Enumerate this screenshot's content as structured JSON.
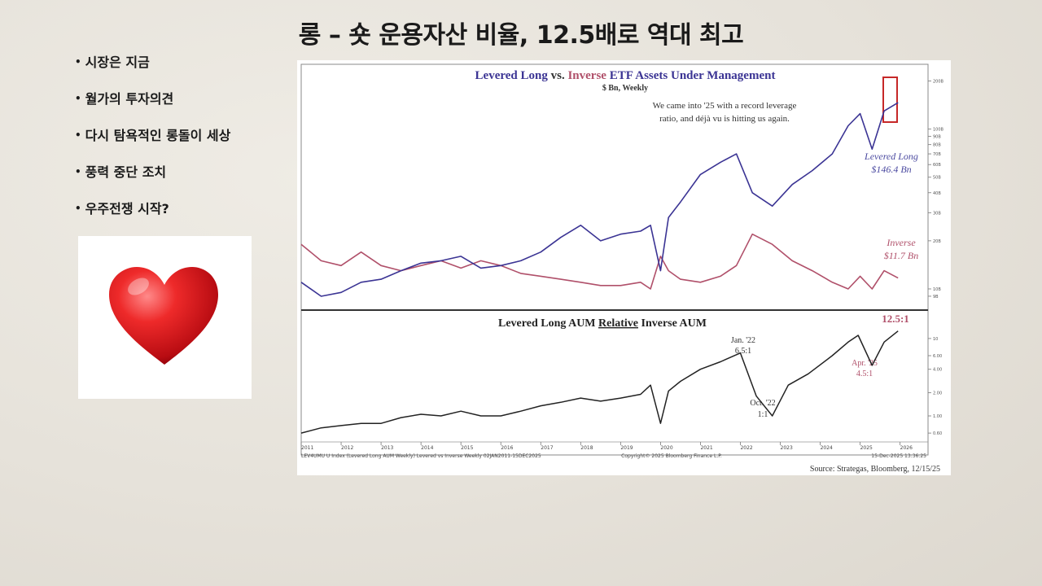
{
  "slide": {
    "title": "롱 – 숏 운용자산 비율, 12.5배로 역대 최고",
    "bullets": [
      "시장은 지금",
      "월가의 투자의견",
      "다시 탐욕적인 롱돌이 세상",
      "풍력 중단 조치",
      "우주전쟁 시작?"
    ],
    "image_icon": "red-heart"
  },
  "colors": {
    "long": "#3b3494",
    "inverse": "#b0506a",
    "ratio": "#222222",
    "highlight": "#c62828",
    "heart": "#e0141e"
  },
  "chart_data": [
    {
      "type": "line",
      "title_parts": [
        "Levered Long",
        " vs. ",
        "Inverse",
        " ETF Assets Under Management"
      ],
      "subtitle": "$ Bn, Weekly",
      "annotation": "We came into '25 with a record leverage ratio, and déjà vu is hitting us again.",
      "scale": "log",
      "y_ticks": [
        "200B",
        "100B",
        "90B",
        "80B",
        "70B",
        "60B",
        "50B",
        "40B",
        "30B",
        "20B",
        "10B",
        "9B"
      ],
      "x": [
        2011.0,
        2011.5,
        2012.0,
        2012.5,
        2013.0,
        2013.5,
        2014.0,
        2014.5,
        2015.0,
        2015.5,
        2016.0,
        2016.5,
        2017.0,
        2017.5,
        2018.0,
        2018.5,
        2019.0,
        2019.5,
        2019.75,
        2020.0,
        2020.2,
        2020.5,
        2021.0,
        2021.5,
        2021.9,
        2022.3,
        2022.8,
        2023.3,
        2023.8,
        2024.3,
        2024.7,
        2025.0,
        2025.3,
        2025.6,
        2025.95
      ],
      "series": [
        {
          "name": "Levered Long",
          "label_value": "$146.4 Bn",
          "values": [
            11,
            9,
            9.5,
            11,
            11.5,
            13,
            14.5,
            15,
            16,
            13.5,
            14,
            15,
            17,
            21,
            25,
            20,
            22,
            23,
            25,
            13,
            28,
            35,
            52,
            62,
            70,
            40,
            33,
            45,
            55,
            70,
            105,
            125,
            75,
            130,
            146.4
          ]
        },
        {
          "name": "Inverse",
          "label_value": "$11.7 Bn",
          "values": [
            19,
            15,
            14,
            17,
            14,
            13,
            14,
            15,
            13.5,
            15,
            14,
            12.5,
            12,
            11.5,
            11,
            10.5,
            10.5,
            11,
            10,
            16,
            13,
            11.5,
            11,
            12,
            14,
            22,
            19,
            15,
            13,
            11,
            10,
            12,
            10,
            13,
            11.7
          ]
        }
      ]
    },
    {
      "type": "line",
      "title_parts": [
        "Levered Long AUM ",
        "Relative",
        " Inverse AUM"
      ],
      "scale": "log",
      "y_ticks": [
        "10",
        "6.00",
        "4.00",
        "2.00",
        "1.00",
        "0.60"
      ],
      "x_ticks": [
        "2011",
        "2012",
        "2013",
        "2014",
        "2015",
        "2016",
        "2017",
        "2018",
        "2019",
        "2020",
        "2021",
        "2022",
        "2023",
        "2024",
        "2025",
        "2026"
      ],
      "series": [
        {
          "name": "Levered Long AUM Relative Inverse AUM",
          "x": [
            2011.0,
            2011.5,
            2012.0,
            2012.5,
            2013.0,
            2013.5,
            2014.0,
            2014.5,
            2015.0,
            2015.5,
            2016.0,
            2016.5,
            2017.0,
            2017.5,
            2018.0,
            2018.5,
            2019.0,
            2019.5,
            2019.75,
            2020.0,
            2020.2,
            2020.5,
            2021.0,
            2021.5,
            2022.0,
            2022.4,
            2022.8,
            2023.2,
            2023.7,
            2024.3,
            2024.7,
            2024.95,
            2025.3,
            2025.6,
            2025.95
          ],
          "values": [
            0.6,
            0.7,
            0.75,
            0.8,
            0.8,
            0.95,
            1.05,
            1.0,
            1.15,
            1.0,
            1.0,
            1.15,
            1.35,
            1.5,
            1.7,
            1.55,
            1.7,
            1.9,
            2.5,
            0.8,
            2.1,
            2.8,
            4.0,
            5.0,
            6.5,
            1.8,
            1.0,
            2.5,
            3.5,
            6.0,
            9.0,
            11.0,
            4.5,
            9.0,
            12.5
          ]
        }
      ],
      "annotations": [
        {
          "label": "Jan. '22",
          "value": "6.5:1"
        },
        {
          "label": "Oct. '22",
          "value": "1:1"
        },
        {
          "label": "Apr. '25",
          "value": "4.5:1"
        },
        {
          "label": "",
          "value": "12.5:1"
        }
      ]
    }
  ],
  "footer": {
    "index": "LEV4UMU U Index (Levered Long AUM Weekly) Levered vs Inverse Weekly 02JAN2011-15DEC2025",
    "copyright": "Copyright© 2025 Bloomberg Finance L.P.",
    "date": "15-Dec-2025 13:36:25",
    "source": "Source: Strategas, Bloomberg, 12/15/25"
  }
}
